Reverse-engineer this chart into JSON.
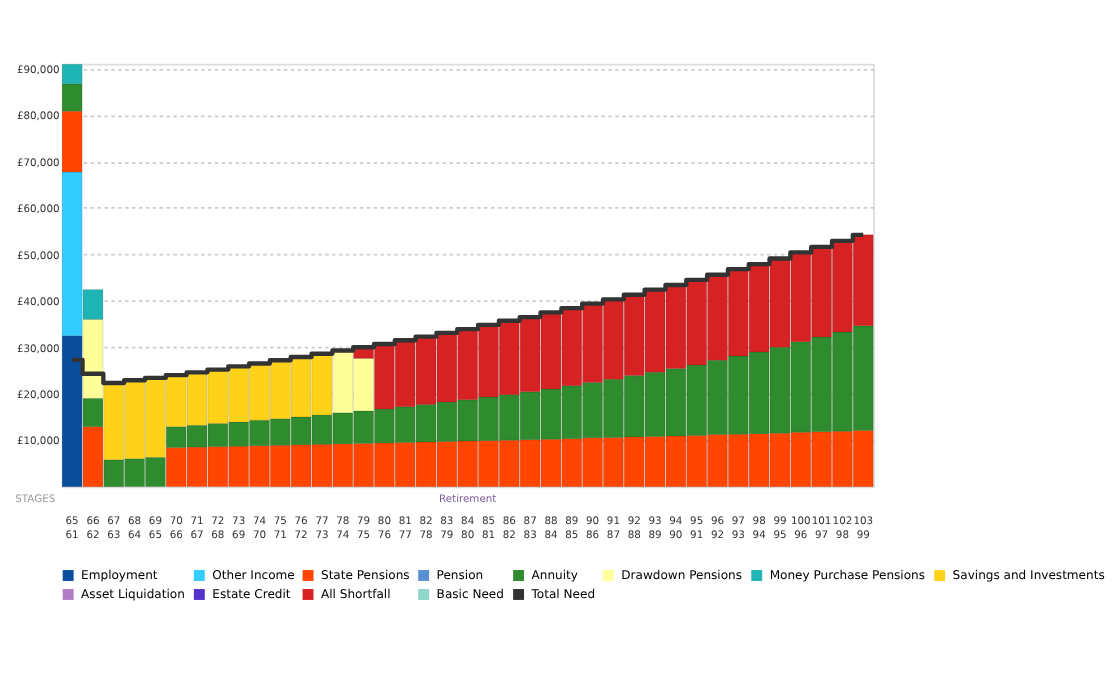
{
  "chart_data": {
    "type": "bar",
    "stacked": true,
    "categories": [
      "65\n61",
      "66\n62",
      "67\n63",
      "68\n64",
      "69\n65",
      "70\n66",
      "71\n67",
      "72\n68",
      "73\n69",
      "74\n70",
      "75\n71",
      "76\n72",
      "77\n73",
      "78\n74",
      "79\n75",
      "80\n76",
      "81\n77",
      "82\n78",
      "83\n79",
      "84\n80",
      "85\n81",
      "86\n82",
      "87\n83",
      "88\n84",
      "89\n85",
      "90\n86",
      "91\n87",
      "92\n88",
      "93\n89",
      "94\n90",
      "95\n91",
      "96\n92",
      "97\n93",
      "98\n94",
      "99\n95",
      "100\n96",
      "101\n97",
      "102\n98",
      "103\n99"
    ],
    "series": [
      {
        "name": "Employment",
        "color": "#0b4f9c",
        "values": [
          32500,
          null,
          null,
          null,
          null,
          null,
          null,
          null,
          null,
          null,
          null,
          null,
          null,
          null,
          null,
          null,
          null,
          null,
          null,
          null,
          null,
          null,
          null,
          null,
          null,
          null,
          null,
          null,
          null,
          null,
          null,
          null,
          null,
          null,
          null,
          null,
          null,
          null,
          null
        ]
      },
      {
        "name": "Other Income",
        "color": "#33ccff",
        "values": [
          35200,
          null,
          null,
          null,
          null,
          null,
          null,
          null,
          null,
          null,
          null,
          null,
          null,
          null,
          null,
          null,
          null,
          null,
          null,
          null,
          null,
          null,
          null,
          null,
          null,
          null,
          null,
          null,
          null,
          null,
          null,
          null,
          null,
          null,
          null,
          null,
          null,
          null,
          null
        ]
      },
      {
        "name": "State Pensions",
        "color": "#ff4500",
        "values": [
          13100,
          12900,
          null,
          null,
          null,
          8400,
          8500,
          8600,
          8700,
          8800,
          8900,
          9000,
          9100,
          9200,
          9300,
          9400,
          9500,
          9600,
          9700,
          9800,
          9900,
          10000,
          10100,
          10200,
          10300,
          10500,
          10600,
          10700,
          10800,
          10900,
          11000,
          11200,
          11300,
          11400,
          11500,
          11700,
          11800,
          11900,
          12100
        ]
      },
      {
        "name": "Pension",
        "color": "#5b8fd4",
        "values": [
          null,
          null,
          null,
          null,
          null,
          null,
          null,
          null,
          null,
          null,
          null,
          null,
          null,
          null,
          null,
          null,
          null,
          null,
          null,
          null,
          null,
          null,
          null,
          null,
          null,
          null,
          null,
          null,
          null,
          null,
          null,
          null,
          null,
          null,
          null,
          null,
          null,
          null,
          null
        ]
      },
      {
        "name": "Annuity",
        "color": "#2e8b2e",
        "values": [
          5900,
          6100,
          5800,
          6000,
          6300,
          4500,
          4700,
          5000,
          5200,
          5500,
          5700,
          6000,
          6300,
          6700,
          7000,
          7300,
          7700,
          8100,
          8500,
          8900,
          9400,
          9800,
          10300,
          10800,
          11400,
          11900,
          12500,
          13200,
          13800,
          14500,
          15200,
          16000,
          16800,
          17600,
          18500,
          19500,
          20400,
          21400,
          22500
        ]
      },
      {
        "name": "Drawdown Pensions",
        "color": "#ffff99",
        "values": [
          null,
          17000,
          null,
          null,
          null,
          null,
          null,
          null,
          null,
          null,
          null,
          null,
          null,
          13400,
          11300,
          null,
          null,
          null,
          null,
          null,
          null,
          null,
          null,
          null,
          null,
          null,
          null,
          null,
          null,
          null,
          null,
          null,
          null,
          null,
          null,
          null,
          null,
          null,
          null
        ]
      },
      {
        "name": "Money Purchase Pensions",
        "color": "#1fb5b5",
        "values": [
          4200,
          6400,
          null,
          null,
          null,
          null,
          null,
          null,
          null,
          null,
          null,
          null,
          null,
          null,
          null,
          null,
          null,
          null,
          null,
          null,
          null,
          null,
          null,
          null,
          null,
          null,
          null,
          null,
          null,
          null,
          null,
          null,
          null,
          null,
          null,
          null,
          null,
          null,
          null
        ]
      },
      {
        "name": "Savings and Investments",
        "color": "#ffd21a",
        "values": [
          null,
          null,
          16500,
          16900,
          17100,
          11100,
          11400,
          11600,
          12000,
          12200,
          12600,
          12900,
          13200,
          null,
          null,
          null,
          null,
          null,
          null,
          null,
          null,
          null,
          null,
          null,
          null,
          null,
          null,
          null,
          null,
          null,
          null,
          null,
          null,
          null,
          null,
          null,
          null,
          null,
          null
        ]
      },
      {
        "name": "Asset Liquidation",
        "color": "#b07cc6",
        "values": [
          null,
          null,
          null,
          null,
          null,
          null,
          null,
          null,
          null,
          null,
          null,
          null,
          null,
          null,
          null,
          null,
          null,
          null,
          null,
          null,
          null,
          null,
          null,
          null,
          null,
          null,
          null,
          null,
          null,
          null,
          null,
          null,
          null,
          null,
          null,
          null,
          null,
          null,
          null
        ]
      },
      {
        "name": "Estate Credit",
        "color": "#5533cc",
        "values": [
          null,
          null,
          null,
          null,
          null,
          null,
          null,
          null,
          null,
          null,
          null,
          null,
          null,
          null,
          null,
          null,
          null,
          null,
          null,
          null,
          null,
          null,
          null,
          null,
          null,
          null,
          null,
          null,
          null,
          null,
          null,
          null,
          null,
          null,
          null,
          null,
          null,
          null,
          null
        ]
      },
      {
        "name": "All Shortfall",
        "color": "#d62222",
        "values": [
          null,
          null,
          null,
          null,
          null,
          null,
          null,
          null,
          null,
          null,
          null,
          null,
          null,
          null,
          2400,
          14000,
          14300,
          14600,
          14900,
          15200,
          15500,
          15900,
          16100,
          16500,
          16700,
          17000,
          17200,
          17400,
          17800,
          18000,
          18300,
          18400,
          18700,
          18900,
          19100,
          19200,
          19400,
          19600,
          19600
        ]
      },
      {
        "name": "Basic Need",
        "type": "step",
        "color": "#8fd6cc",
        "values": [
          null,
          null,
          null,
          null,
          null,
          null,
          null,
          null,
          null,
          null,
          null,
          null,
          null,
          null,
          null,
          null,
          null,
          null,
          null,
          null,
          null,
          null,
          null,
          null,
          null,
          null,
          null,
          null,
          null,
          null,
          null,
          null,
          null,
          null,
          null,
          null,
          null,
          null,
          null
        ]
      },
      {
        "name": "Total Need",
        "type": "step",
        "color": "#333333",
        "values": [
          27300,
          24300,
          22300,
          22900,
          23400,
          24000,
          24600,
          25200,
          25900,
          26500,
          27200,
          27900,
          28600,
          29300,
          30000,
          30700,
          31500,
          32300,
          33100,
          33900,
          34800,
          35700,
          36500,
          37500,
          38400,
          39400,
          40300,
          41300,
          42400,
          43400,
          44500,
          45600,
          46800,
          47900,
          49100,
          50400,
          51600,
          52900,
          54200
        ]
      }
    ],
    "ylim": [
      0,
      91000
    ],
    "yticks": [
      {
        "value": 10000,
        "label": "£10,000"
      },
      {
        "value": 20000,
        "label": "£20,000"
      },
      {
        "value": 30000,
        "label": "£30,000"
      },
      {
        "value": 40000,
        "label": "£40,000"
      },
      {
        "value": 50000,
        "label": "£50,000"
      },
      {
        "value": 60000,
        "label": "£60,000"
      },
      {
        "value": 70000,
        "label": "£70,000"
      },
      {
        "value": 80000,
        "label": "£80,000"
      },
      {
        "value": 90000,
        "label": "£90,000"
      }
    ],
    "grid": "y",
    "legend": "bottom",
    "annotations": [
      "STAGES",
      "Retirement"
    ]
  }
}
